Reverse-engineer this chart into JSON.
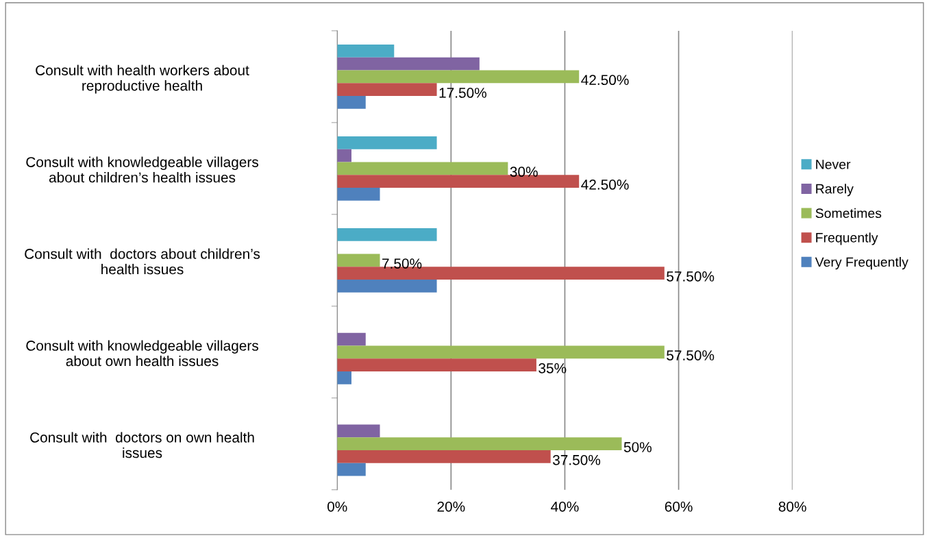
{
  "chart_data": {
    "type": "bar",
    "orientation": "horizontal",
    "categories": [
      "Consult with health workers about\nreproductive health",
      "Consult with knowledgeable villagers\nabout children’s health issues",
      "Consult with  doctors about children’s\nhealth issues",
      "Consult with knowledgeable villagers\nabout own health issues",
      "Consult with  doctors on own health\nissues"
    ],
    "series": [
      {
        "name": "Never",
        "color": "#4bacc6",
        "values": [
          10,
          17.5,
          17.5,
          null,
          null
        ]
      },
      {
        "name": "Rarely",
        "color": "#8064a2",
        "values": [
          25,
          2.5,
          null,
          5,
          7.5
        ]
      },
      {
        "name": "Sometimes",
        "color": "#9bbb59",
        "values": [
          42.5,
          30,
          7.5,
          57.5,
          50
        ],
        "value_labels": [
          "42.50%",
          "30%",
          "7.50%",
          "57.50%",
          "50%"
        ]
      },
      {
        "name": "Frequently",
        "color": "#c0504d",
        "values": [
          17.5,
          42.5,
          57.5,
          35,
          37.5
        ],
        "value_labels": [
          "17.50%",
          "42.50%",
          "57.50%",
          "35%",
          "37.50%"
        ]
      },
      {
        "name": "Very Frequently",
        "color": "#4f81bd",
        "values": [
          5,
          7.5,
          17.5,
          2.5,
          5
        ]
      }
    ],
    "xlim": [
      0,
      80
    ],
    "xticks": [
      {
        "value": 0,
        "label": "0%"
      },
      {
        "value": 20,
        "label": "20%"
      },
      {
        "value": 40,
        "label": "40%"
      },
      {
        "value": 60,
        "label": "60%"
      },
      {
        "value": 80,
        "label": "80%"
      }
    ],
    "grid": "x",
    "legend": "right"
  }
}
